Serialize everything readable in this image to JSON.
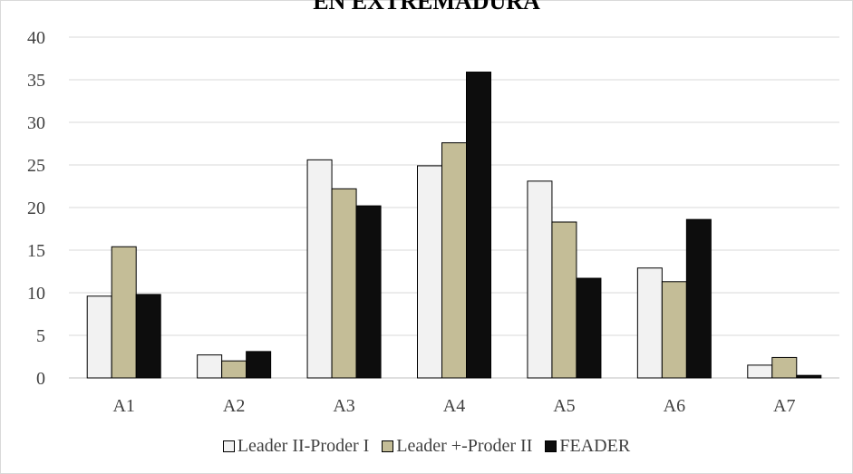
{
  "chart_data": {
    "type": "bar",
    "title": "EN EXTREMADURA",
    "categories": [
      "A1",
      "A2",
      "A3",
      "A4",
      "A5",
      "A6",
      "A7"
    ],
    "series": [
      {
        "name": "Leader II-Proder I",
        "color": "#f2f2f2",
        "values": [
          9.6,
          2.7,
          25.6,
          24.9,
          23.1,
          12.9,
          1.5
        ]
      },
      {
        "name": "Leader +-Proder II",
        "color": "#c4bd97",
        "values": [
          15.4,
          2.0,
          22.2,
          27.6,
          18.3,
          11.3,
          2.4
        ]
      },
      {
        "name": "FEADER",
        "color": "#0d0d0d",
        "values": [
          9.8,
          3.1,
          20.2,
          35.9,
          11.7,
          18.6,
          0.3
        ]
      }
    ],
    "yticks": [
      "0",
      "5",
      "10",
      "15",
      "20",
      "25",
      "30",
      "35",
      "40"
    ],
    "ylim": [
      0,
      40
    ],
    "grid": true,
    "legend_position": "bottom"
  }
}
